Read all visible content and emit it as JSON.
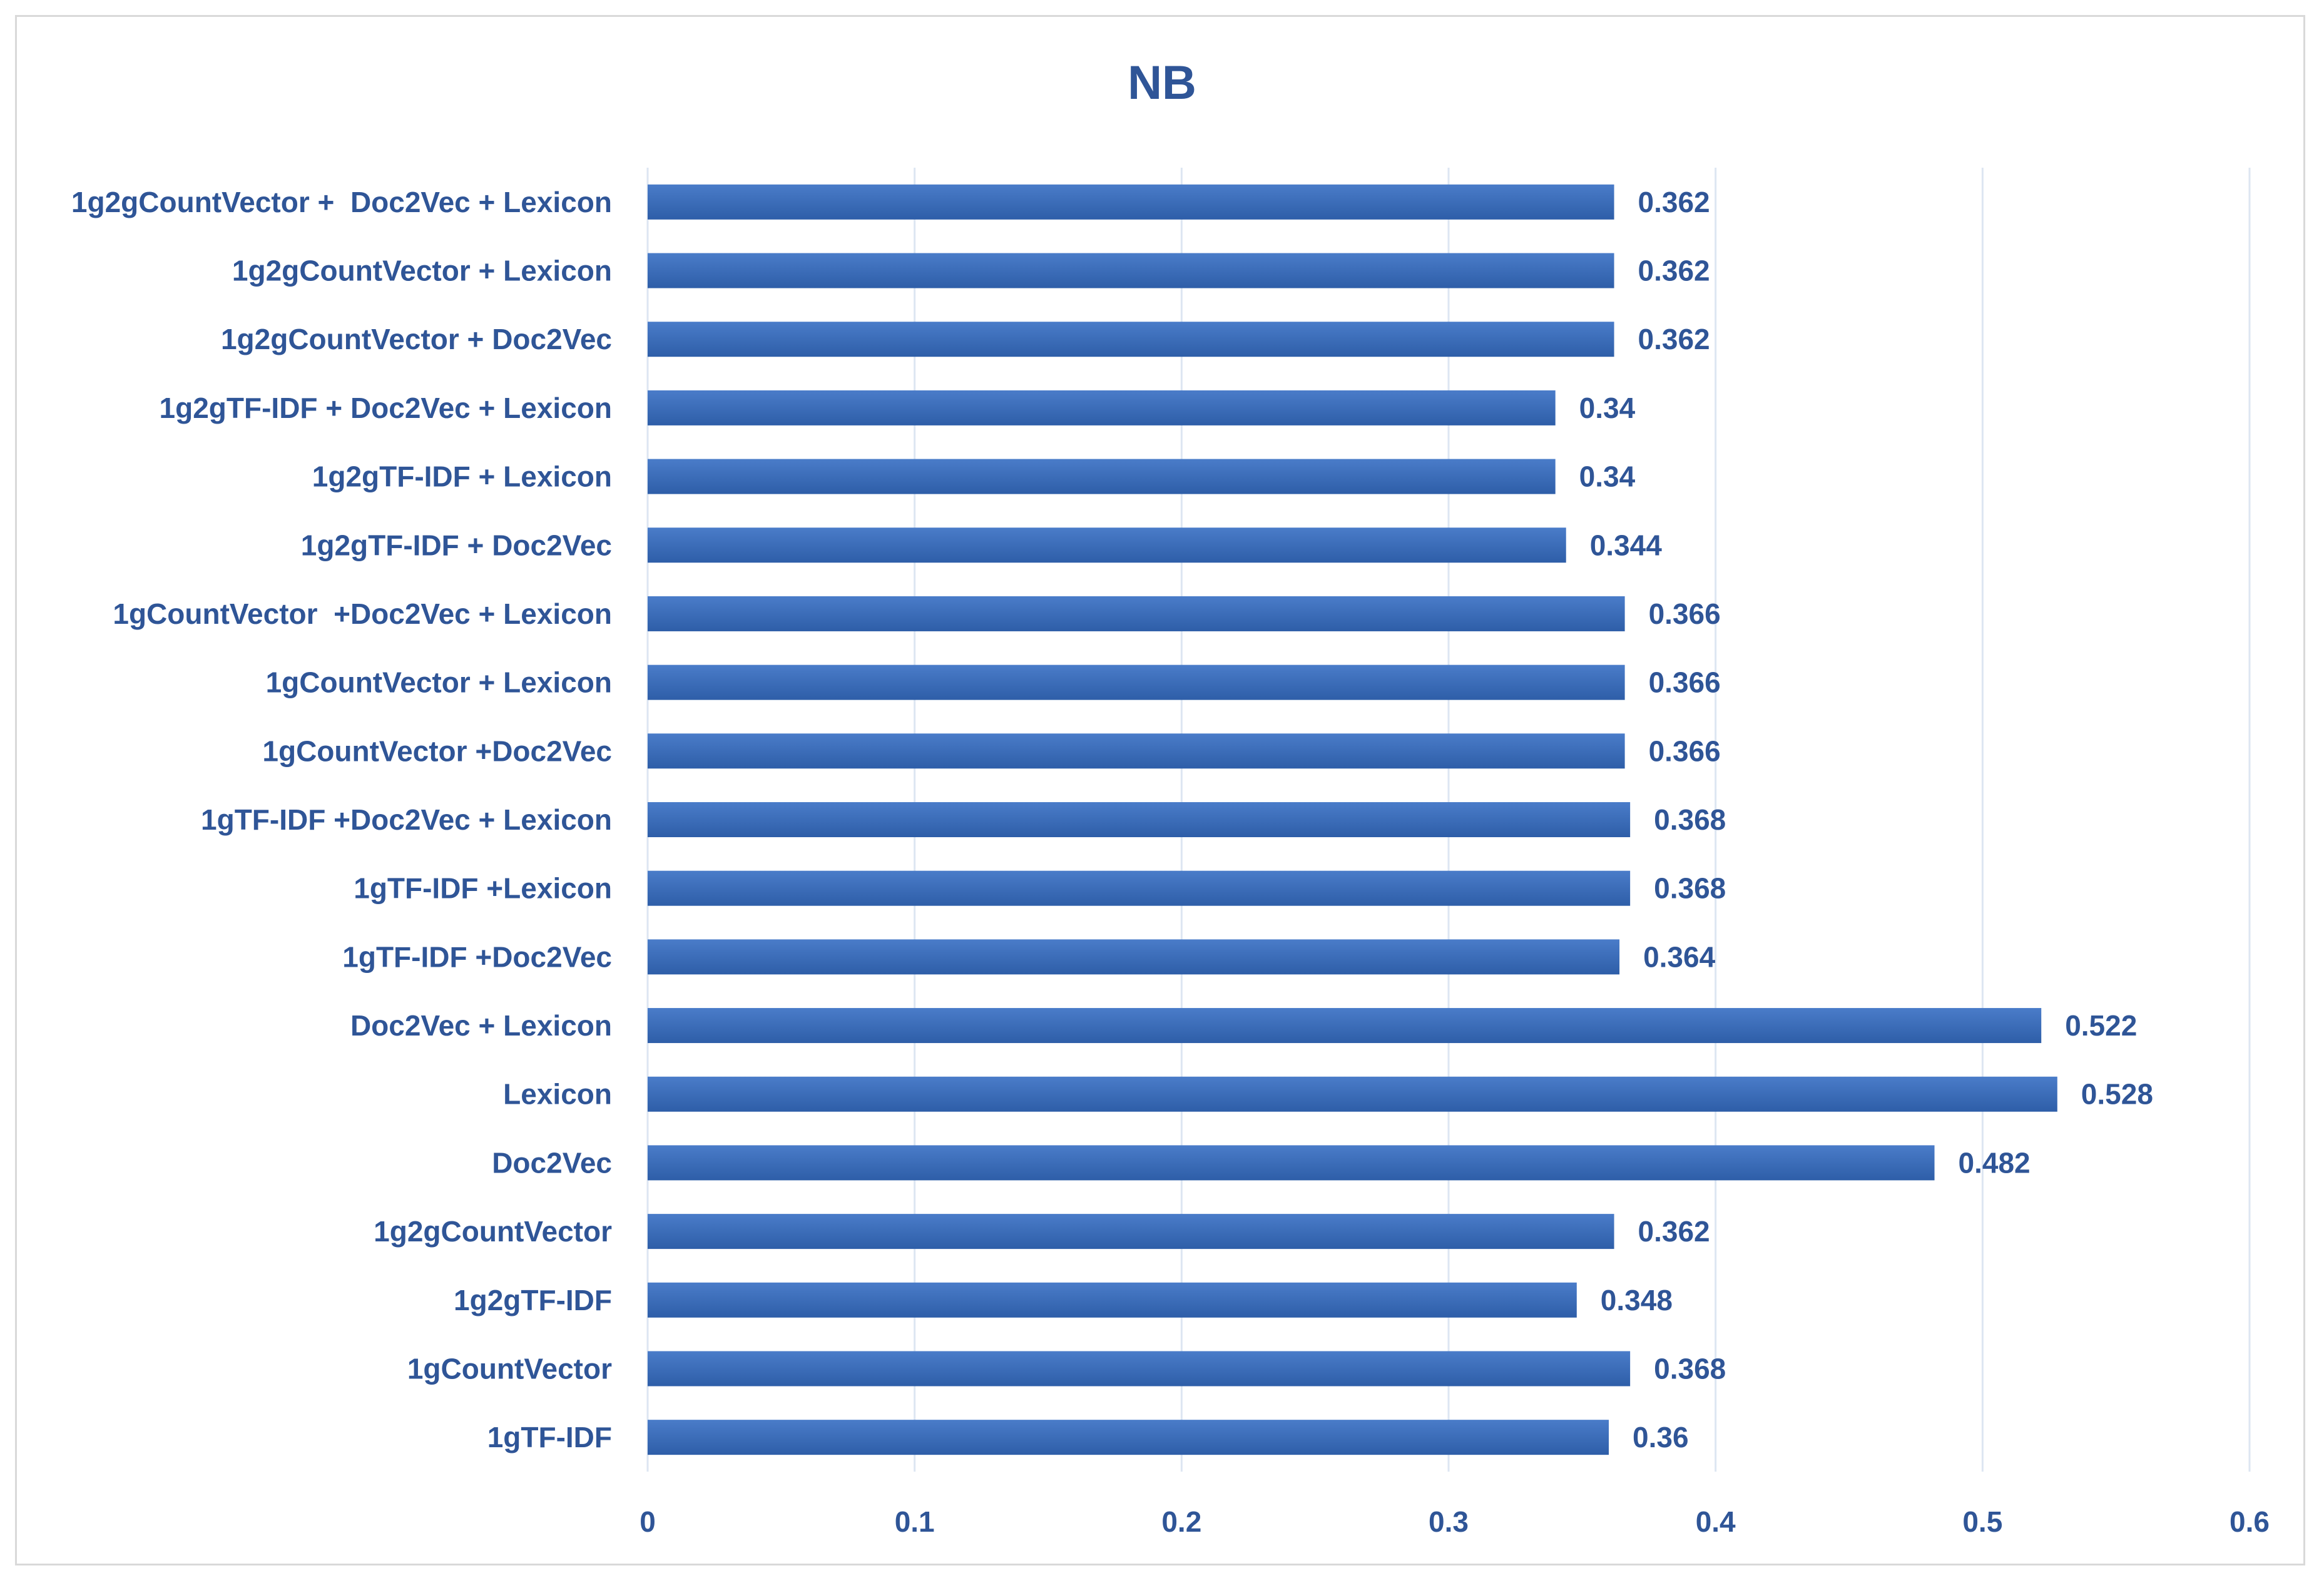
{
  "chart_data": {
    "type": "bar",
    "orientation": "horizontal",
    "title": "NB",
    "categories": [
      "1g2gCountVector +  Doc2Vec + Lexicon",
      "1g2gCountVector + Lexicon",
      "1g2gCountVector + Doc2Vec",
      "1g2gTF-IDF + Doc2Vec + Lexicon",
      "1g2gTF-IDF + Lexicon",
      "1g2gTF-IDF + Doc2Vec",
      "1gCountVector  +Doc2Vec + Lexicon",
      "1gCountVector + Lexicon",
      "1gCountVector +Doc2Vec",
      "1gTF-IDF +Doc2Vec + Lexicon",
      "1gTF-IDF +Lexicon",
      "1gTF-IDF +Doc2Vec",
      "Doc2Vec + Lexicon",
      "Lexicon",
      "Doc2Vec",
      "1g2gCountVector",
      "1g2gTF-IDF",
      "1gCountVector",
      "1gTF-IDF"
    ],
    "values": [
      0.362,
      0.362,
      0.362,
      0.34,
      0.34,
      0.344,
      0.366,
      0.366,
      0.366,
      0.368,
      0.368,
      0.364,
      0.522,
      0.528,
      0.482,
      0.362,
      0.348,
      0.368,
      0.36
    ],
    "value_labels": [
      "0.362",
      "0.362",
      "0.362",
      "0.34",
      "0.34",
      "0.344",
      "0.366",
      "0.366",
      "0.366",
      "0.368",
      "0.368",
      "0.364",
      "0.522",
      "0.528",
      "0.482",
      "0.362",
      "0.348",
      "0.368",
      "0.36"
    ],
    "xlim": [
      0,
      0.6
    ],
    "xticks": [
      0,
      0.1,
      0.2,
      0.3,
      0.4,
      0.5,
      0.6
    ],
    "xtick_labels": [
      "0",
      "0.1",
      "0.2",
      "0.3",
      "0.4",
      "0.5",
      "0.6"
    ],
    "grid": "vertical",
    "legend": "none",
    "colors": {
      "bar": "#2e5ea8",
      "bar_top": "#4a7cc9",
      "text": "#2f5597",
      "grid": "#dde6f2",
      "frame": "#d9d9d9"
    }
  }
}
